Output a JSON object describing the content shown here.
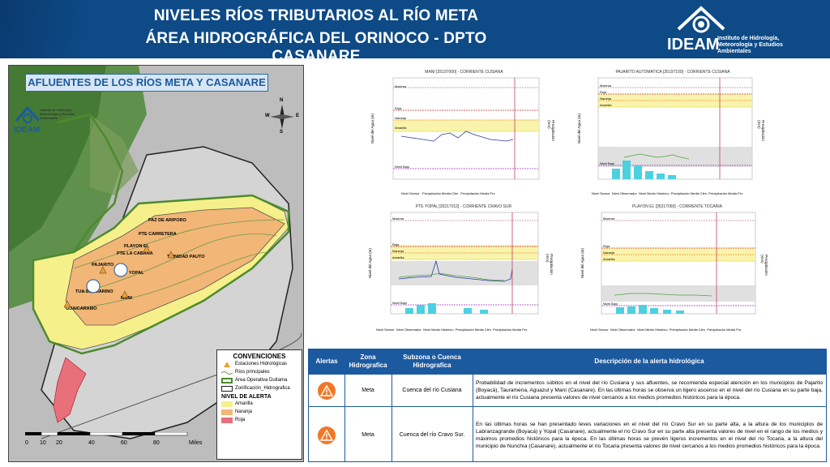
{
  "header": {
    "title_line1": "NIVELES RÍOS TRIBUTARIOS AL RÍO META",
    "title_line2": "ÁREA HIDROGRÁFICA DEL ORINOCO - DPTO CASANARE",
    "logo_text": "IDEAM",
    "logo_subtext": "Instituto de Hidrología, Meteorología y Estudios Ambientales"
  },
  "map": {
    "title": "AFLUENTES DE LOS RÍOS META Y CASANARE",
    "logo_text": "IDEAM",
    "logo_subtext": "Instituto de Hidrología, Meteorología y Estudios Ambientales",
    "compass": {
      "n": "N",
      "s": "S",
      "e": "E",
      "w": "W"
    },
    "stations": [
      "PAZ DE ARIPORO",
      "PTE CARRETERA",
      "PLAYON EL",
      "PTE LA CABANA",
      "TRINIDAD PAUTO",
      "PAJARITO",
      "YOPAL",
      "TUA SUBMARINO",
      "MANI",
      "GUAICARAMO"
    ],
    "legend": {
      "title": "CONVENCIONES",
      "items": [
        "Estaciones Hidrológicas",
        "Ríos principales",
        "Area Operativa Duitama",
        "Zonificación_Hidrografica"
      ],
      "alert_title": "NIVEL DE ALERTA",
      "alert_items": [
        "Amarilla",
        "Naranja",
        "Roja"
      ]
    },
    "scale": {
      "ticks": [
        "0",
        "10",
        "20",
        "40",
        "60",
        "80"
      ],
      "unit": "Miles"
    },
    "colors": {
      "yellow": "#f6f08a",
      "orange": "#f2b676",
      "red": "#e8707a",
      "green": "#4d8a2e"
    }
  },
  "charts": [
    {
      "title": "MANI [35197000] - CORRIENTE CUSIANA",
      "left_label": "Nivel del Agua (m)",
      "right_label": "Precipitación (mm)",
      "thresholds": [
        "Maxima",
        "Roja",
        "Naranja",
        "Amarilla",
        "Nivel Bajo"
      ],
      "legend": [
        "Nivel Sensor",
        "Precipitación Media Clim",
        "Precipitación Media Pro"
      ]
    },
    {
      "title": "PAJARITO AUTOMATICA [35197109] - CORRIENTE CUSIANA",
      "left_label": "Nivel del Agua (m)",
      "right_label": "Precipitación (mm)",
      "thresholds": [
        "Maxima",
        "Roja",
        "Naranja",
        "Amarilla",
        "Nivel Bajo"
      ],
      "legend": [
        "Nivel Sensor",
        "Nivel Observador",
        "Nivel Medio Histórico",
        "Precipitación Media Clim",
        "Precipitación Media Pro"
      ]
    },
    {
      "title": "PTE YOPAL [35217012] - CORRIENTE CRAVO SUR",
      "left_label": "Nivel del Agua (m)",
      "right_label": "Precipitación (mm)",
      "thresholds": [
        "Maxima",
        "Roja",
        "Naranja",
        "Amarilla",
        "Nivel Bajo"
      ],
      "legend": [
        "Nivel Sensor",
        "Nivel Observador",
        "Nivel Medio Histórico",
        "Precipitación Media Clim",
        "Precipitación Media Pro"
      ]
    },
    {
      "title": "PLAYON EL [35217060] - CORRIENTE TOCARIA",
      "left_label": "Nivel del Agua (m)",
      "right_label": "Precipitación (mm)",
      "thresholds": [
        "Maxima",
        "Roja",
        "Naranja",
        "Amarilla",
        "Nivel Bajo"
      ],
      "legend": [
        "Nivel Sensor",
        "Nivel Observador",
        "Nivel Medio Histórico",
        "Precipitación Media Clim",
        "Precipitación Media Pro"
      ]
    }
  ],
  "alerts": {
    "headers": {
      "alertas": "Alertas",
      "zona": "Zona Hidrografica",
      "subzona": "Subzona o Cuenca Hidrografica",
      "descripcion": "Descripción de la alerta hidrológica"
    },
    "rows": [
      {
        "zona": "Meta",
        "subzona": "Cuenca del río Cusiana",
        "descripcion": "Probabilidad de incrementos súbitos en el nivel del río Cusiana y sus afluentes, se recomienda especial atención en los municipios de Pajarito (Boyacá), Tauramena, Aguazul y Maní (Casanare). En las últimas horas se observa un ligero ascenso en el nivel del río Cusiana en su parte baja, actualmente el río Cusiana presenta valores de nivel cercanos a los medios promedios históricos para la época.",
        "color": "#f07826"
      },
      {
        "zona": "Meta",
        "subzona": "Cuenca del río Cravo Sur.",
        "descripcion": "En las últimas horas se han presentado leves variaciones en el nivel del río Cravo Sur en su parte alta, a la altura de los municipios de Labranzagrande (Boyacá) y Yopal (Casanare), actualmente el río Cravo Sur en su parte alta presenta valores de nivel en el rango de los medios y máximos promedios históricos para la época. En las últimas horas se prevén ligeros incrementos en el nivel del río Tocaria, a la altura del municipio de Nunchía (Casanare), actualmente el río Tocaria presenta valores de nivel cercanos a los medios promedios históricos para la época.",
        "color": "#f07826"
      }
    ]
  }
}
